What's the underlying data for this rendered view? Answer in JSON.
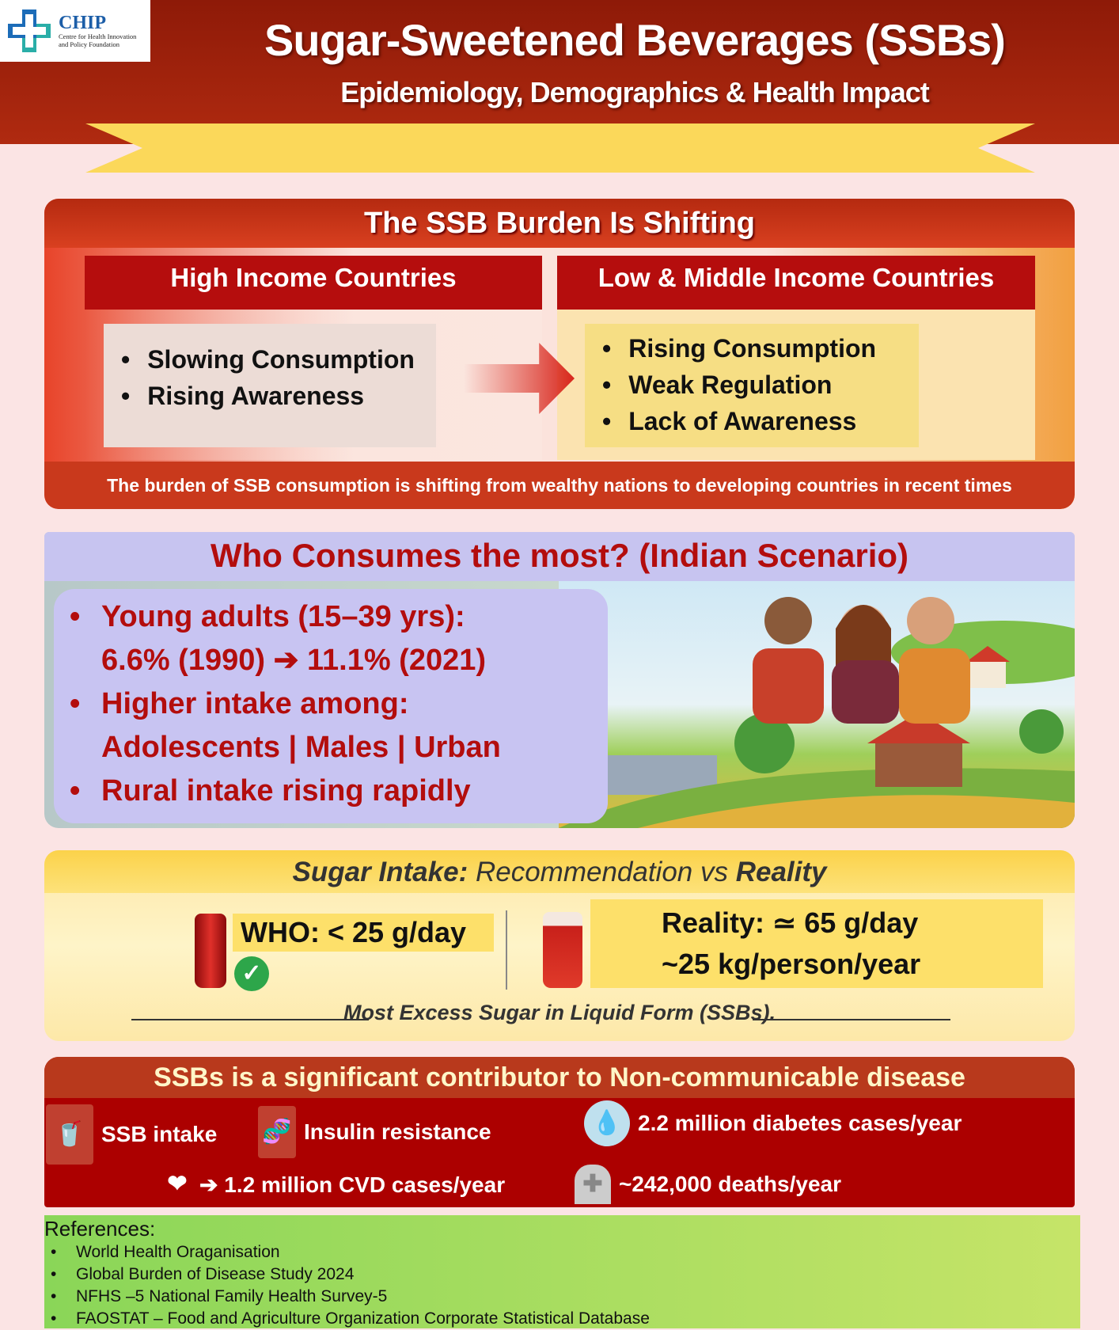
{
  "logo": {
    "name": "CHIP",
    "tagline_1": "Centre for Health Innovation",
    "tagline_2": "and Policy Foundation"
  },
  "header": {
    "title": "Sugar-Sweetened Beverages (SSBs)",
    "subtitle": "Epidemiology, Demographics & Health Impact"
  },
  "burden": {
    "title": "The SSB Burden Is Shifting",
    "high_income": {
      "heading": "High Income Countries",
      "items": [
        "Slowing Consumption",
        "Rising Awareness"
      ]
    },
    "low_middle_income": {
      "heading": "Low & Middle Income Countries",
      "items": [
        "Rising Consumption",
        "Weak Regulation",
        "Lack of Awareness"
      ]
    },
    "footer": "The burden of SSB consumption is shifting from wealthy nations to developing countries in recent times"
  },
  "consumers": {
    "title": "Who Consumes  the most? (Indian Scenario)",
    "items": [
      {
        "line1": "Young adults (15–39 yrs):",
        "line2": "6.6% (1990) ➔ 11.1% (2021)"
      },
      {
        "line1": "Higher intake among:",
        "line2": "Adolescents | Males | Urban"
      },
      {
        "line1": "Rural intake rising rapidly"
      }
    ]
  },
  "sugar": {
    "title_a": "Sugar Intake:",
    "title_b": " Recommendation vs ",
    "title_c": "Reality",
    "who": "WHO:  < 25 g/day",
    "reality_1": "Reality: ≃ 65 g/day",
    "reality_2": "~25 kg/person/year",
    "note": "Most Excess Sugar in Liquid Form (SSBs)."
  },
  "ncd": {
    "title": "SSBs is a significant contributor to Non-communicable disease",
    "ssb": "SSB intake",
    "insulin": "Insulin resistance",
    "diabetes": "2.2 million diabetes cases/year",
    "cvd": "➔ 1.2 million CVD cases/year",
    "deaths": "~242,000 deaths/year"
  },
  "references": {
    "heading": "References:",
    "items": [
      "World Health Oraganisation",
      "Global Burden of Disease Study 2024",
      "NFHS –5 National Family Health Survey-5",
      "FAOSTAT – Food and Agriculture Organization Corporate Statistical Database"
    ]
  },
  "colors": {
    "header_red": "#9e2210",
    "accent_red": "#b50d0d",
    "ribbon_yellow": "#fbd85a",
    "lavender": "#c7c4f0",
    "reference_green": "#a6dc60"
  }
}
